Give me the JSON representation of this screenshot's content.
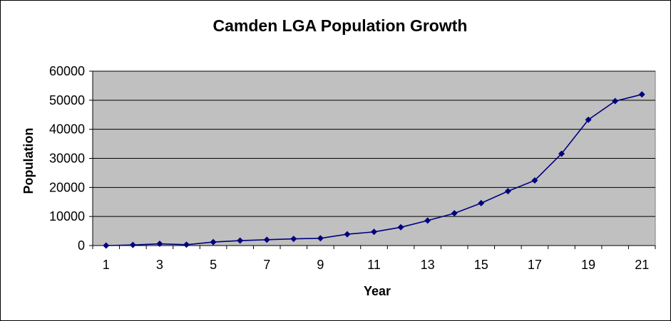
{
  "chart_data": {
    "type": "line",
    "title": "Camden LGA Population Growth",
    "xlabel": "Year",
    "ylabel": "Population",
    "x": [
      1,
      2,
      3,
      4,
      5,
      6,
      7,
      8,
      9,
      10,
      11,
      12,
      13,
      14,
      15,
      16,
      17,
      18,
      19,
      20,
      21
    ],
    "x_tick_labels": [
      "1",
      "3",
      "5",
      "7",
      "9",
      "11",
      "13",
      "15",
      "17",
      "19",
      "21"
    ],
    "y_tick_labels": [
      "0",
      "10000",
      "20000",
      "30000",
      "40000",
      "50000",
      "60000"
    ],
    "ylim": [
      0,
      60000
    ],
    "grid": true,
    "legend": "none",
    "series": [
      {
        "name": "Population",
        "values": [
          0,
          200,
          600,
          300,
          1200,
          1700,
          2000,
          2300,
          2500,
          3900,
          4700,
          6300,
          8600,
          11100,
          14600,
          18700,
          22400,
          31600,
          43300,
          49700,
          52000
        ]
      }
    ],
    "colors": {
      "plot_background": "#c0c0c0",
      "line": "#000080",
      "marker": "#000080",
      "grid": "#000000"
    }
  }
}
